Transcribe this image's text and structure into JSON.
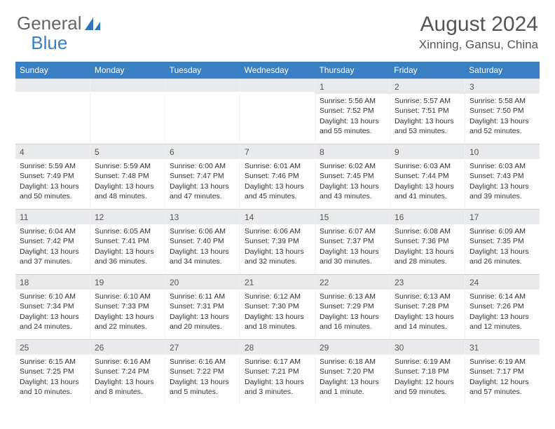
{
  "brand": {
    "part1": "General",
    "part2": "Blue"
  },
  "title": "August 2024",
  "location": "Xinning, Gansu, China",
  "colors": {
    "header_blue": "#3a7fc4",
    "band_grey": "#e9eaec",
    "text": "#333333",
    "title_text": "#555555",
    "background": "#ffffff"
  },
  "weekdays": [
    "Sunday",
    "Monday",
    "Tuesday",
    "Wednesday",
    "Thursday",
    "Friday",
    "Saturday"
  ],
  "weeks": [
    [
      {
        "n": "",
        "sr": "",
        "ss": "",
        "d1": "",
        "d2": ""
      },
      {
        "n": "",
        "sr": "",
        "ss": "",
        "d1": "",
        "d2": ""
      },
      {
        "n": "",
        "sr": "",
        "ss": "",
        "d1": "",
        "d2": ""
      },
      {
        "n": "",
        "sr": "",
        "ss": "",
        "d1": "",
        "d2": ""
      },
      {
        "n": "1",
        "sr": "Sunrise: 5:56 AM",
        "ss": "Sunset: 7:52 PM",
        "d1": "Daylight: 13 hours",
        "d2": "and 55 minutes."
      },
      {
        "n": "2",
        "sr": "Sunrise: 5:57 AM",
        "ss": "Sunset: 7:51 PM",
        "d1": "Daylight: 13 hours",
        "d2": "and 53 minutes."
      },
      {
        "n": "3",
        "sr": "Sunrise: 5:58 AM",
        "ss": "Sunset: 7:50 PM",
        "d1": "Daylight: 13 hours",
        "d2": "and 52 minutes."
      }
    ],
    [
      {
        "n": "4",
        "sr": "Sunrise: 5:59 AM",
        "ss": "Sunset: 7:49 PM",
        "d1": "Daylight: 13 hours",
        "d2": "and 50 minutes."
      },
      {
        "n": "5",
        "sr": "Sunrise: 5:59 AM",
        "ss": "Sunset: 7:48 PM",
        "d1": "Daylight: 13 hours",
        "d2": "and 48 minutes."
      },
      {
        "n": "6",
        "sr": "Sunrise: 6:00 AM",
        "ss": "Sunset: 7:47 PM",
        "d1": "Daylight: 13 hours",
        "d2": "and 47 minutes."
      },
      {
        "n": "7",
        "sr": "Sunrise: 6:01 AM",
        "ss": "Sunset: 7:46 PM",
        "d1": "Daylight: 13 hours",
        "d2": "and 45 minutes."
      },
      {
        "n": "8",
        "sr": "Sunrise: 6:02 AM",
        "ss": "Sunset: 7:45 PM",
        "d1": "Daylight: 13 hours",
        "d2": "and 43 minutes."
      },
      {
        "n": "9",
        "sr": "Sunrise: 6:03 AM",
        "ss": "Sunset: 7:44 PM",
        "d1": "Daylight: 13 hours",
        "d2": "and 41 minutes."
      },
      {
        "n": "10",
        "sr": "Sunrise: 6:03 AM",
        "ss": "Sunset: 7:43 PM",
        "d1": "Daylight: 13 hours",
        "d2": "and 39 minutes."
      }
    ],
    [
      {
        "n": "11",
        "sr": "Sunrise: 6:04 AM",
        "ss": "Sunset: 7:42 PM",
        "d1": "Daylight: 13 hours",
        "d2": "and 37 minutes."
      },
      {
        "n": "12",
        "sr": "Sunrise: 6:05 AM",
        "ss": "Sunset: 7:41 PM",
        "d1": "Daylight: 13 hours",
        "d2": "and 36 minutes."
      },
      {
        "n": "13",
        "sr": "Sunrise: 6:06 AM",
        "ss": "Sunset: 7:40 PM",
        "d1": "Daylight: 13 hours",
        "d2": "and 34 minutes."
      },
      {
        "n": "14",
        "sr": "Sunrise: 6:06 AM",
        "ss": "Sunset: 7:39 PM",
        "d1": "Daylight: 13 hours",
        "d2": "and 32 minutes."
      },
      {
        "n": "15",
        "sr": "Sunrise: 6:07 AM",
        "ss": "Sunset: 7:37 PM",
        "d1": "Daylight: 13 hours",
        "d2": "and 30 minutes."
      },
      {
        "n": "16",
        "sr": "Sunrise: 6:08 AM",
        "ss": "Sunset: 7:36 PM",
        "d1": "Daylight: 13 hours",
        "d2": "and 28 minutes."
      },
      {
        "n": "17",
        "sr": "Sunrise: 6:09 AM",
        "ss": "Sunset: 7:35 PM",
        "d1": "Daylight: 13 hours",
        "d2": "and 26 minutes."
      }
    ],
    [
      {
        "n": "18",
        "sr": "Sunrise: 6:10 AM",
        "ss": "Sunset: 7:34 PM",
        "d1": "Daylight: 13 hours",
        "d2": "and 24 minutes."
      },
      {
        "n": "19",
        "sr": "Sunrise: 6:10 AM",
        "ss": "Sunset: 7:33 PM",
        "d1": "Daylight: 13 hours",
        "d2": "and 22 minutes."
      },
      {
        "n": "20",
        "sr": "Sunrise: 6:11 AM",
        "ss": "Sunset: 7:31 PM",
        "d1": "Daylight: 13 hours",
        "d2": "and 20 minutes."
      },
      {
        "n": "21",
        "sr": "Sunrise: 6:12 AM",
        "ss": "Sunset: 7:30 PM",
        "d1": "Daylight: 13 hours",
        "d2": "and 18 minutes."
      },
      {
        "n": "22",
        "sr": "Sunrise: 6:13 AM",
        "ss": "Sunset: 7:29 PM",
        "d1": "Daylight: 13 hours",
        "d2": "and 16 minutes."
      },
      {
        "n": "23",
        "sr": "Sunrise: 6:13 AM",
        "ss": "Sunset: 7:28 PM",
        "d1": "Daylight: 13 hours",
        "d2": "and 14 minutes."
      },
      {
        "n": "24",
        "sr": "Sunrise: 6:14 AM",
        "ss": "Sunset: 7:26 PM",
        "d1": "Daylight: 13 hours",
        "d2": "and 12 minutes."
      }
    ],
    [
      {
        "n": "25",
        "sr": "Sunrise: 6:15 AM",
        "ss": "Sunset: 7:25 PM",
        "d1": "Daylight: 13 hours",
        "d2": "and 10 minutes."
      },
      {
        "n": "26",
        "sr": "Sunrise: 6:16 AM",
        "ss": "Sunset: 7:24 PM",
        "d1": "Daylight: 13 hours",
        "d2": "and 8 minutes."
      },
      {
        "n": "27",
        "sr": "Sunrise: 6:16 AM",
        "ss": "Sunset: 7:22 PM",
        "d1": "Daylight: 13 hours",
        "d2": "and 5 minutes."
      },
      {
        "n": "28",
        "sr": "Sunrise: 6:17 AM",
        "ss": "Sunset: 7:21 PM",
        "d1": "Daylight: 13 hours",
        "d2": "and 3 minutes."
      },
      {
        "n": "29",
        "sr": "Sunrise: 6:18 AM",
        "ss": "Sunset: 7:20 PM",
        "d1": "Daylight: 13 hours",
        "d2": "and 1 minute."
      },
      {
        "n": "30",
        "sr": "Sunrise: 6:19 AM",
        "ss": "Sunset: 7:18 PM",
        "d1": "Daylight: 12 hours",
        "d2": "and 59 minutes."
      },
      {
        "n": "31",
        "sr": "Sunrise: 6:19 AM",
        "ss": "Sunset: 7:17 PM",
        "d1": "Daylight: 12 hours",
        "d2": "and 57 minutes."
      }
    ]
  ]
}
